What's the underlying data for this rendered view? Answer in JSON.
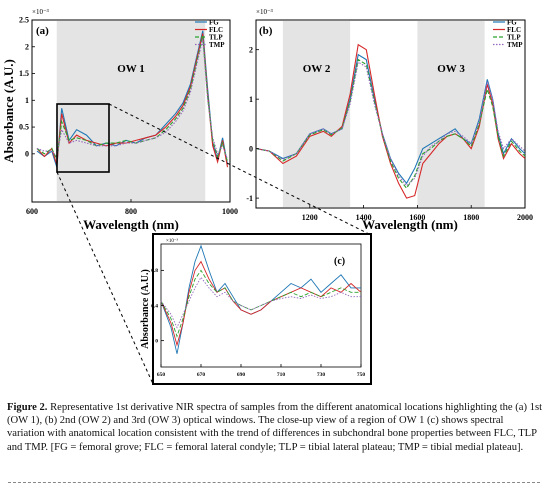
{
  "figure": {
    "chart_data": [
      {
        "panel": "(a)",
        "type": "line",
        "xlabel": "Wavelength (nm)",
        "ylabel": "Absorbance (A.U.)",
        "y_exponent": "×10⁻³",
        "xlim": [
          600,
          1000
        ],
        "ylim": [
          -0.9,
          2.5
        ],
        "xticks": [
          "600",
          "800",
          "1000"
        ],
        "yticks": [
          "0",
          "0.5",
          "1",
          "1.5",
          "2",
          "2.5"
        ],
        "shaded_regions": [
          {
            "label": "OW 1",
            "x": [
              650,
              950
            ]
          }
        ],
        "x": [
          610,
          625,
          640,
          650,
          660,
          675,
          690,
          710,
          730,
          750,
          770,
          790,
          810,
          830,
          850,
          870,
          890,
          905,
          920,
          935,
          945,
          955,
          965,
          975,
          985,
          995
        ],
        "series": [
          {
            "name": "FG",
            "color": "#1f77b4",
            "style": "solid",
            "values": [
              0.05,
              -0.05,
              0.05,
              -0.25,
              0.85,
              0.25,
              0.45,
              0.35,
              0.15,
              0.2,
              0.15,
              0.25,
              0.2,
              0.3,
              0.35,
              0.55,
              0.75,
              0.95,
              1.3,
              1.9,
              2.3,
              1.2,
              0.2,
              -0.1,
              0.3,
              -0.2
            ]
          },
          {
            "name": "FLC",
            "color": "#d62728",
            "style": "solid",
            "values": [
              0.1,
              -0.05,
              0.1,
              -0.2,
              0.75,
              0.2,
              0.35,
              0.25,
              0.2,
              0.15,
              0.2,
              0.2,
              0.25,
              0.3,
              0.35,
              0.5,
              0.7,
              0.9,
              1.25,
              1.85,
              2.25,
              1.1,
              0.15,
              -0.15,
              0.25,
              -0.25
            ]
          },
          {
            "name": "TLP",
            "color": "#2ca02c",
            "style": "dashed",
            "values": [
              0.1,
              0.0,
              0.1,
              -0.1,
              0.6,
              0.25,
              0.3,
              0.25,
              0.15,
              0.2,
              0.2,
              0.25,
              0.2,
              0.25,
              0.3,
              0.45,
              0.65,
              0.85,
              1.2,
              1.8,
              2.2,
              1.05,
              0.25,
              -0.05,
              0.2,
              -0.15
            ]
          },
          {
            "name": "TMP",
            "color": "#9467bd",
            "style": "dotted",
            "values": [
              0.1,
              0.05,
              0.05,
              -0.05,
              0.45,
              0.2,
              0.25,
              0.2,
              0.15,
              0.15,
              0.15,
              0.2,
              0.2,
              0.25,
              0.3,
              0.4,
              0.6,
              0.8,
              1.15,
              1.75,
              2.15,
              1.0,
              0.3,
              0.0,
              0.15,
              -0.1
            ]
          }
        ]
      },
      {
        "panel": "(b)",
        "type": "line",
        "xlabel": "Wavelength (nm)",
        "ylabel": "",
        "y_exponent": "×10⁻³",
        "xlim": [
          1000,
          2000
        ],
        "ylim": [
          -1.2,
          2.6
        ],
        "xticks": [
          "1200",
          "1400",
          "1600",
          "1800",
          "2000"
        ],
        "yticks": [
          "-1",
          "0",
          "1",
          "2"
        ],
        "shaded_regions": [
          {
            "label": "OW 2",
            "x": [
              1100,
              1350
            ]
          },
          {
            "label": "OW 3",
            "x": [
              1600,
              1850
            ]
          }
        ],
        "x": [
          1000,
          1050,
          1100,
          1150,
          1200,
          1250,
          1280,
          1320,
          1350,
          1380,
          1410,
          1440,
          1470,
          1500,
          1530,
          1560,
          1590,
          1620,
          1650,
          1680,
          1710,
          1740,
          1770,
          1800,
          1830,
          1860,
          1880,
          1900,
          1920,
          1950,
          1980,
          2000
        ],
        "series": [
          {
            "name": "FG",
            "color": "#1f77b4",
            "style": "solid",
            "values": [
              0,
              -0.05,
              -0.2,
              -0.1,
              0.3,
              0.4,
              0.3,
              0.4,
              1.0,
              1.9,
              1.8,
              1.0,
              0.3,
              -0.2,
              -0.5,
              -0.7,
              -0.4,
              0.0,
              0.1,
              0.2,
              0.3,
              0.4,
              0.2,
              0.1,
              0.6,
              1.4,
              1.0,
              0.3,
              -0.1,
              0.2,
              0.0,
              -0.1
            ]
          },
          {
            "name": "FLC",
            "color": "#d62728",
            "style": "solid",
            "values": [
              0,
              -0.05,
              -0.3,
              -0.15,
              0.25,
              0.35,
              0.25,
              0.45,
              1.1,
              2.1,
              2.0,
              1.1,
              0.25,
              -0.3,
              -0.7,
              -1.0,
              -0.95,
              -0.3,
              -0.1,
              0.1,
              0.25,
              0.3,
              0.2,
              0.0,
              0.45,
              1.3,
              0.9,
              0.2,
              -0.2,
              0.1,
              -0.1,
              -0.2
            ]
          },
          {
            "name": "TLP",
            "color": "#2ca02c",
            "style": "dashed",
            "values": [
              0,
              -0.05,
              -0.25,
              -0.1,
              0.28,
              0.38,
              0.28,
              0.42,
              0.95,
              1.8,
              1.7,
              0.95,
              0.28,
              -0.25,
              -0.6,
              -0.8,
              -0.55,
              -0.1,
              0.0,
              0.15,
              0.25,
              0.3,
              0.2,
              0.05,
              0.5,
              1.2,
              0.85,
              0.25,
              -0.15,
              0.15,
              -0.05,
              -0.15
            ]
          },
          {
            "name": "TMP",
            "color": "#9467bd",
            "style": "dotted",
            "values": [
              0,
              -0.05,
              -0.22,
              -0.1,
              0.3,
              0.4,
              0.3,
              0.4,
              0.9,
              1.75,
              1.65,
              0.9,
              0.3,
              -0.2,
              -0.55,
              -0.75,
              -0.6,
              -0.15,
              0.05,
              0.15,
              0.3,
              0.35,
              0.25,
              0.1,
              0.55,
              1.35,
              1.0,
              0.35,
              0.0,
              0.2,
              0.05,
              -0.05
            ]
          }
        ]
      },
      {
        "panel": "(c)",
        "type": "line",
        "xlabel": "",
        "ylabel": "Absorbance (A.U.)",
        "y_exponent": "×10⁻³",
        "xlim": [
          650,
          750
        ],
        "ylim": [
          -0.3,
          1.1
        ],
        "xticks": [
          "650",
          "670",
          "690",
          "710",
          "730",
          "750"
        ],
        "yticks": [
          "0",
          "0.4",
          "0.8"
        ],
        "x": [
          650,
          655,
          658,
          661,
          664,
          667,
          670,
          674,
          678,
          682,
          686,
          690,
          695,
          700,
          705,
          710,
          715,
          720,
          725,
          730,
          735,
          740,
          745,
          750
        ],
        "series": [
          {
            "name": "FG",
            "color": "#1f77b4",
            "style": "solid",
            "values": [
              0.45,
              0.15,
              -0.15,
              0.2,
              0.6,
              0.9,
              1.08,
              0.8,
              0.55,
              0.65,
              0.5,
              0.35,
              0.3,
              0.35,
              0.45,
              0.55,
              0.65,
              0.6,
              0.7,
              0.55,
              0.65,
              0.75,
              0.6,
              0.6
            ]
          },
          {
            "name": "FLC",
            "color": "#d62728",
            "style": "solid",
            "values": [
              0.45,
              0.2,
              -0.05,
              0.2,
              0.55,
              0.8,
              0.9,
              0.7,
              0.55,
              0.6,
              0.45,
              0.35,
              0.3,
              0.35,
              0.45,
              0.5,
              0.55,
              0.6,
              0.55,
              0.5,
              0.6,
              0.55,
              0.65,
              0.55
            ]
          },
          {
            "name": "TLP",
            "color": "#2ca02c",
            "style": "dashed",
            "values": [
              0.45,
              0.25,
              0.05,
              0.25,
              0.5,
              0.7,
              0.8,
              0.65,
              0.55,
              0.6,
              0.45,
              0.4,
              0.35,
              0.4,
              0.45,
              0.5,
              0.55,
              0.5,
              0.55,
              0.5,
              0.55,
              0.6,
              0.55,
              0.55
            ]
          },
          {
            "name": "TMP",
            "color": "#9467bd",
            "style": "dotted",
            "values": [
              0.45,
              0.3,
              0.15,
              0.3,
              0.45,
              0.6,
              0.72,
              0.6,
              0.5,
              0.55,
              0.45,
              0.4,
              0.35,
              0.4,
              0.45,
              0.48,
              0.5,
              0.48,
              0.52,
              0.48,
              0.5,
              0.55,
              0.5,
              0.5
            ]
          }
        ]
      }
    ]
  },
  "caption": {
    "label": "Figure 2.",
    "text": "Representative 1st derivative NIR spectra of samples from the different anatomical locations highlighting the (a) 1st (OW 1), (b) 2nd (OW 2) and 3rd (OW 3) optical windows. The close-up view of a region of OW 1 (c) shows spectral variation with anatomical location consistent with the trend of differences in subchondral bone properties between FLC, TLP and TMP. [FG = femoral grove; FLC = femoral lateral condyle; TLP = tibial lateral plateau; TMP = tibial medial plateau]."
  }
}
